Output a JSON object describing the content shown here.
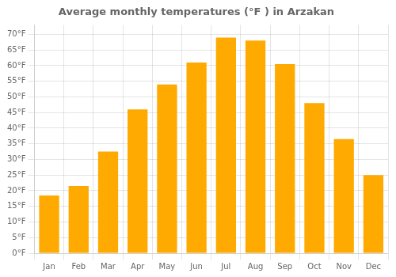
{
  "chart_data": {
    "type": "bar",
    "title": "Average monthly temperatures (°F ) in Arzakan",
    "categories": [
      "Jan",
      "Feb",
      "Mar",
      "Apr",
      "May",
      "Jun",
      "Jul",
      "Aug",
      "Sep",
      "Oct",
      "Nov",
      "Dec"
    ],
    "values": [
      18.5,
      21.5,
      32.5,
      46,
      54,
      61,
      69,
      68,
      60.5,
      48,
      36.5,
      25
    ],
    "color": "#FFAA00",
    "ylim": [
      0,
      73
    ],
    "yticks": [
      {
        "value": 0,
        "label": "0°F"
      },
      {
        "value": 5,
        "label": "5°F"
      },
      {
        "value": 10,
        "label": "10°F"
      },
      {
        "value": 15,
        "label": "15°F"
      },
      {
        "value": 20,
        "label": "20°F"
      },
      {
        "value": 25,
        "label": "25°F"
      },
      {
        "value": 30,
        "label": "30°F"
      },
      {
        "value": 35,
        "label": "35°F"
      },
      {
        "value": 40,
        "label": "40°F"
      },
      {
        "value": 45,
        "label": "45°F"
      },
      {
        "value": 50,
        "label": "50°F"
      },
      {
        "value": 55,
        "label": "55°F"
      },
      {
        "value": 60,
        "label": "60°F"
      },
      {
        "value": 65,
        "label": "65°F"
      },
      {
        "value": 70,
        "label": "70°F"
      }
    ],
    "grid": true
  }
}
